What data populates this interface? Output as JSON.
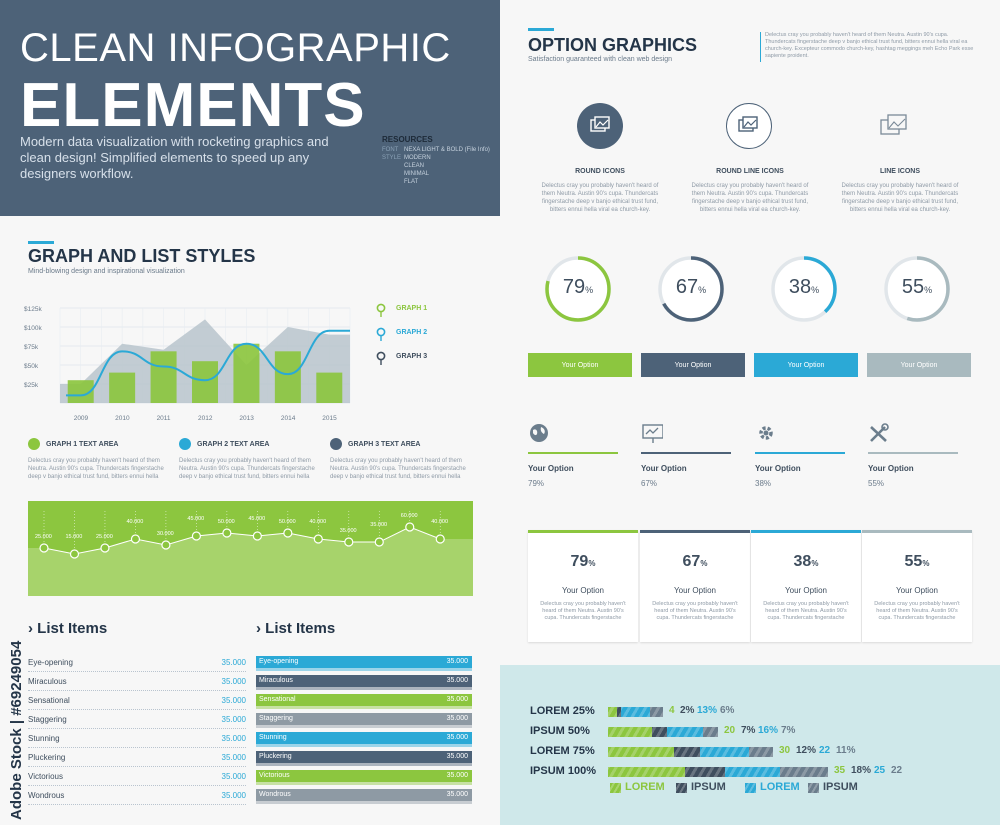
{
  "header": {
    "title_line1": "CLEAN INFOGRAPHIC",
    "title_line2": "ELEMENTS",
    "description": "Modern data visualization with rocketing graphics and clean design! Simplified elements to speed up any designers workflow.",
    "resources": {
      "heading": "RESOURCES",
      "rows": [
        {
          "key": "FONT",
          "value": "NEXA LIGHT & BOLD (File Info)"
        },
        {
          "key": "STYLE",
          "value": "MODERN"
        },
        {
          "key": "",
          "value": "CLEAN"
        },
        {
          "key": "",
          "value": "MINIMAL"
        },
        {
          "key": "",
          "value": "FLAT"
        }
      ]
    }
  },
  "graph_section": {
    "title": "GRAPH AND LIST STYLES",
    "subtitle": "Mind-blowing design and inspirational visualization",
    "legend": [
      "GRAPH 1",
      "GRAPH 2",
      "GRAPH 3"
    ],
    "text_areas": [
      {
        "title": "GRAPH 1 TEXT AREA",
        "body": "Delectus cray you probably haven't heard of them Neutra. Austin 90's cupa. Thundercats fingerstache deep v banjo ethical trust fund, bitters ennui hella"
      },
      {
        "title": "GRAPH 2 TEXT AREA",
        "body": "Delectus cray you probably haven't heard of them Neutra. Austin 90's cupa. Thundercats fingerstache deep v banjo ethical trust fund, bitters ennui hella"
      },
      {
        "title": "GRAPH  3 TEXT AREA",
        "body": "Delectus cray you probably haven't heard of them Neutra. Austin 90's cupa. Thundercats fingerstache deep v banjo ethical trust fund, bitters ennui hella"
      }
    ]
  },
  "chart_data": [
    {
      "type": "bar",
      "categories": [
        "2009",
        "2010",
        "2011",
        "2012",
        "2013",
        "2014",
        "2015"
      ],
      "y_ticks": [
        "$125k",
        "$100k",
        "$75k",
        "$50k",
        "$25k"
      ],
      "ylim": [
        0,
        125
      ],
      "series": [
        {
          "name": "GRAPH 1",
          "values": [
            30,
            40,
            68,
            55,
            78,
            68,
            40
          ]
        },
        {
          "name": "GRAPH 2",
          "values": [
            10,
            68,
            48,
            30,
            78,
            38,
            95
          ]
        },
        {
          "name": "GRAPH 3",
          "values": [
            25,
            78,
            70,
            110,
            50,
            100,
            90
          ]
        }
      ]
    },
    {
      "type": "area",
      "point_labels": [
        "25.000",
        "15.000",
        "25.000",
        "40.000",
        "30.000",
        "45.000",
        "50.000",
        "45.000",
        "50.000",
        "40.000",
        "35.000",
        "35.000",
        "60.000",
        "40.000"
      ],
      "values": [
        25,
        15,
        25,
        40,
        30,
        45,
        50,
        45,
        50,
        40,
        35,
        35,
        60,
        40
      ]
    }
  ],
  "list_left": {
    "title": "List Items",
    "items": [
      {
        "label": "Eye-opening",
        "value": "35.000"
      },
      {
        "label": "Miraculous",
        "value": "35.000"
      },
      {
        "label": "Sensational",
        "value": "35.000"
      },
      {
        "label": "Staggering",
        "value": "35.000"
      },
      {
        "label": "Stunning",
        "value": "35.000"
      },
      {
        "label": "Pluckering",
        "value": "35.000"
      },
      {
        "label": "Victorious",
        "value": "35.000"
      },
      {
        "label": "Wondrous",
        "value": "35.000"
      }
    ]
  },
  "list_right": {
    "title": "List Items",
    "items": [
      {
        "label": "Eye-opening",
        "value": "35.000",
        "color": "#2ba9d6"
      },
      {
        "label": "Miraculous",
        "value": "35.000",
        "color": "#4d6278"
      },
      {
        "label": "Sensational",
        "value": "35.000",
        "color": "#8cc63f"
      },
      {
        "label": "Staggering",
        "value": "35.000",
        "color": "#8e9aa4"
      },
      {
        "label": "Stunning",
        "value": "35.000",
        "color": "#2ba9d6"
      },
      {
        "label": "Pluckering",
        "value": "35.000",
        "color": "#4d6278"
      },
      {
        "label": "Victorious",
        "value": "35.000",
        "color": "#8cc63f"
      },
      {
        "label": "Wondrous",
        "value": "35.000",
        "color": "#8e9aa4"
      }
    ]
  },
  "option_section": {
    "title": "OPTION GRAPHICS",
    "subtitle": "Satisfaction guaranteed with clean web design",
    "note": "Delectus cray you probably haven't heard of them Neutra. Austin 90's cupa. Thundercats fingerstache deep v banjo ethical trust fund, bitters ennui hella viral ea church-key. Excepteur commodo church-key, hashtag meggings meh Echo Park esse sapiente proident.",
    "icons": [
      {
        "title": "ROUND ICONS",
        "body": "Delectus cray you probably haven't heard of them Neutra. Austin 90's cupa. Thundercats fingerstache deep v banjo ethical trust fund, bitters ennui hella viral ea church-key."
      },
      {
        "title": "ROUND LINE ICONS",
        "body": "Delectus cray you probably haven't heard of them Neutra. Austin 90's cupa. Thundercats fingerstache deep v banjo ethical trust fund, bitters ennui hella viral ea church-key."
      },
      {
        "title": "LINE ICONS",
        "body": "Delectus cray you probably haven't heard of them Neutra. Austin 90's cupa. Thundercats fingerstache deep v banjo ethical trust fund, bitters ennui hella viral ea church-key."
      }
    ],
    "donuts": [
      {
        "value": 79,
        "label": "79",
        "unit": "%",
        "color": "#8cc63f",
        "button": "Your Option"
      },
      {
        "value": 67,
        "label": "67",
        "unit": "%",
        "color": "#4d6278",
        "button": "Your Option"
      },
      {
        "value": 38,
        "label": "38",
        "unit": "%",
        "color": "#2ba9d6",
        "button": "Your Option"
      },
      {
        "value": 55,
        "label": "55",
        "unit": "%",
        "color": "#a9babf",
        "button": "Your Option"
      }
    ],
    "options": [
      {
        "label": "Your Option",
        "value": "79%",
        "icon": "globe-icon",
        "color": "#8cc63f"
      },
      {
        "label": "Your Option",
        "value": "67%",
        "icon": "presentation-icon",
        "color": "#4d6278"
      },
      {
        "label": "Your Option",
        "value": "38%",
        "icon": "gear-icon",
        "color": "#2ba9d6"
      },
      {
        "label": "Your Option",
        "value": "55%",
        "icon": "tools-icon",
        "color": "#a9babf"
      }
    ],
    "cards": [
      {
        "num": "79",
        "unit": "%",
        "label": "Your Option",
        "body": "Delectus cray you probably haven't heard of them Neutra. Austin 90's cupa. Thundercats fingerstache",
        "color": "#8cc63f"
      },
      {
        "num": "67",
        "unit": "%",
        "label": "Your Option",
        "body": "Delectus cray you probably haven't heard of them Neutra. Austin 90's cupa. Thundercats fingerstache",
        "color": "#4d6278"
      },
      {
        "num": "38",
        "unit": "%",
        "label": "Your Option",
        "body": "Delectus cray you probably haven't heard of them Neutra. Austin 90's cupa. Thundercats fingerstache",
        "color": "#2ba9d6"
      },
      {
        "num": "55",
        "unit": "%",
        "label": "Your Option",
        "body": "Delectus cray you probably haven't heard of them Neutra. Austin 90's cupa. Thundercats fingerstache",
        "color": "#a9babf"
      }
    ]
  },
  "stacked": {
    "rows": [
      {
        "label": "LOREM 25%",
        "segments": [
          4,
          2,
          13,
          6
        ],
        "nums": [
          "4",
          "2%",
          "13%",
          "6%"
        ]
      },
      {
        "label": "IPSUM 50%",
        "segments": [
          20,
          7,
          16,
          7
        ],
        "nums": [
          "20",
          "7%",
          "16%",
          "7%"
        ]
      },
      {
        "label": "LOREM 75%",
        "segments": [
          30,
          12,
          22,
          11
        ],
        "nums": [
          "30",
          "12%",
          "22",
          "11%"
        ]
      },
      {
        "label": "IPSUM 100%",
        "segments": [
          35,
          18,
          25,
          22
        ],
        "nums": [
          "35",
          "18%",
          "25",
          "22"
        ]
      }
    ],
    "colors": [
      "#8cc63f",
      "#3f4e5e",
      "#2ba9d6",
      "#6b7d8c"
    ],
    "legend": [
      "LOREM",
      "IPSUM",
      "LOREM",
      "IPSUM"
    ]
  },
  "watermark": "Adobe Stock | #69249054"
}
